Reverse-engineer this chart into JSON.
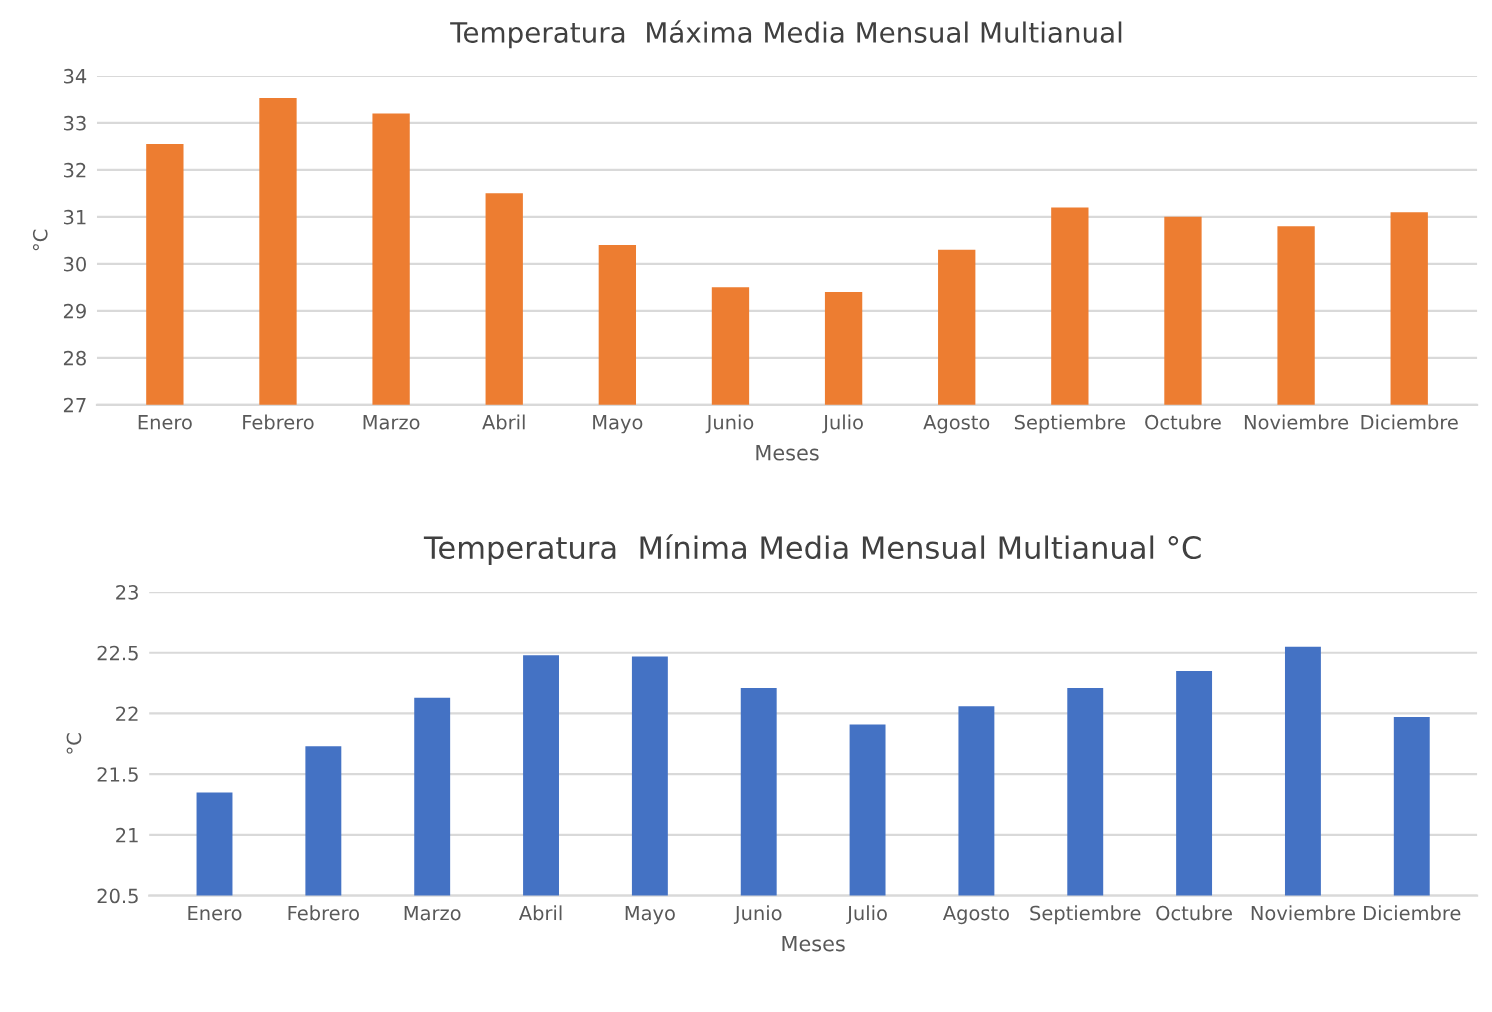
{
  "chart_data": [
    {
      "type": "bar",
      "title": "Temperatura  Máxima Media Mensual Multianual",
      "xlabel": "Meses",
      "ylabel": "°C",
      "categories": [
        "Enero",
        "Febrero",
        "Marzo",
        "Abril",
        "Mayo",
        "Junio",
        "Julio",
        "Agosto",
        "Septiembre",
        "Octubre",
        "Noviembre",
        "Diciembre"
      ],
      "values": [
        32.55,
        33.53,
        33.2,
        31.5,
        30.4,
        29.5,
        29.4,
        30.3,
        31.2,
        31.0,
        30.8,
        31.1
      ],
      "color": "#ed7d31",
      "ylim": [
        27,
        34
      ],
      "yticks": [
        27,
        28,
        29,
        30,
        31,
        32,
        33,
        34
      ],
      "grid": "y"
    },
    {
      "type": "bar",
      "title": "Temperatura  Mínima Media Mensual Multianual °C",
      "xlabel": "Meses",
      "ylabel": "°C",
      "categories": [
        "Enero",
        "Febrero",
        "Marzo",
        "Abril",
        "Mayo",
        "Junio",
        "Julio",
        "Agosto",
        "Septiembre",
        "Octubre",
        "Noviembre",
        "Diciembre"
      ],
      "values": [
        21.35,
        21.73,
        22.13,
        22.48,
        22.47,
        22.21,
        21.91,
        22.06,
        22.21,
        22.35,
        22.55,
        21.97
      ],
      "color": "#4472c4",
      "ylim": [
        20.5,
        23
      ],
      "yticks": [
        20.5,
        21,
        21.5,
        22,
        22.5,
        23
      ],
      "grid": "y"
    }
  ]
}
